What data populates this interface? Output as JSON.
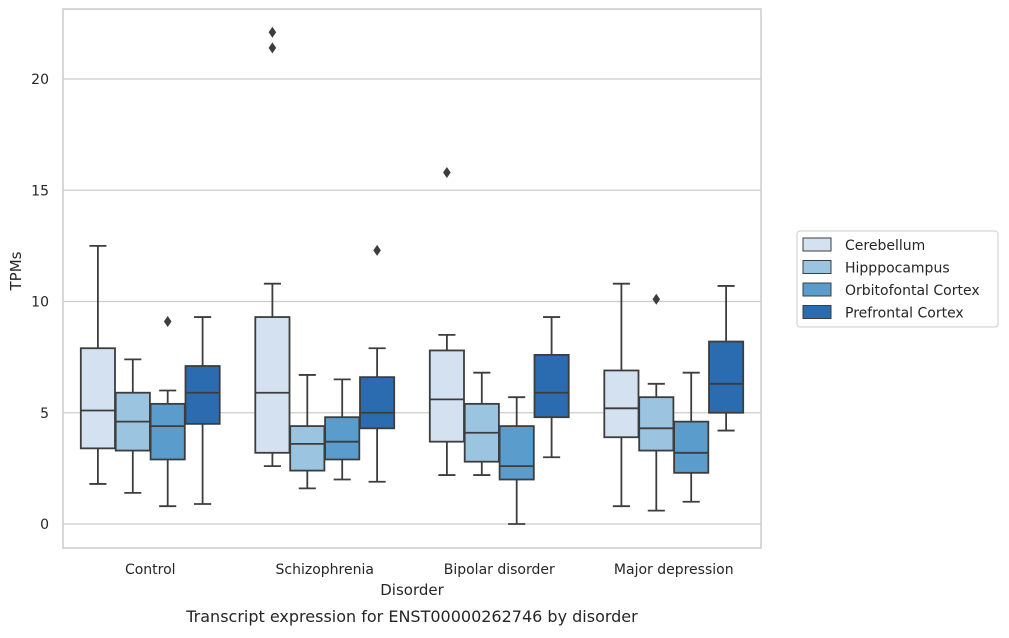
{
  "chart_data": {
    "type": "box",
    "title": "",
    "caption": "Transcript expression for ENST00000262746 by disorder",
    "xlabel": "Disorder",
    "ylabel": "TPMs",
    "ylim": [
      -1,
      23.3
    ],
    "yticks": [
      0,
      5,
      10,
      15,
      20
    ],
    "grid": "horizontal",
    "legend_position": "right",
    "categories": [
      "Control",
      "Schizophrenia",
      "Bipolar disorder",
      "Major depression"
    ],
    "series": [
      {
        "name": "Cerebellum",
        "color": "#d4e1f1",
        "boxes": [
          {
            "whisker_low": 1.8,
            "q1": 3.4,
            "median": 5.1,
            "q3": 7.9,
            "whisker_high": 12.5,
            "outliers": []
          },
          {
            "whisker_low": 2.6,
            "q1": 3.2,
            "median": 5.9,
            "q3": 9.3,
            "whisker_high": 10.8,
            "outliers": [
              21.4,
              22.1
            ]
          },
          {
            "whisker_low": 2.2,
            "q1": 3.7,
            "median": 5.6,
            "q3": 7.8,
            "whisker_high": 8.5,
            "outliers": [
              15.8
            ]
          },
          {
            "whisker_low": 0.8,
            "q1": 3.9,
            "median": 5.2,
            "q3": 6.9,
            "whisker_high": 10.8,
            "outliers": []
          }
        ]
      },
      {
        "name": "Hipppocampus",
        "color": "#9ac4e0",
        "boxes": [
          {
            "whisker_low": 1.4,
            "q1": 3.3,
            "median": 4.6,
            "q3": 5.9,
            "whisker_high": 7.4,
            "outliers": []
          },
          {
            "whisker_low": 1.6,
            "q1": 2.4,
            "median": 3.6,
            "q3": 4.4,
            "whisker_high": 6.7,
            "outliers": []
          },
          {
            "whisker_low": 2.2,
            "q1": 2.8,
            "median": 4.1,
            "q3": 5.4,
            "whisker_high": 6.8,
            "outliers": []
          },
          {
            "whisker_low": 0.6,
            "q1": 3.3,
            "median": 4.3,
            "q3": 5.7,
            "whisker_high": 6.3,
            "outliers": [
              10.1
            ]
          }
        ]
      },
      {
        "name": "Orbitofontal Cortex",
        "color": "#5a9ccc",
        "boxes": [
          {
            "whisker_low": 0.8,
            "q1": 2.9,
            "median": 4.4,
            "q3": 5.4,
            "whisker_high": 6.0,
            "outliers": [
              9.1
            ]
          },
          {
            "whisker_low": 2.0,
            "q1": 2.9,
            "median": 3.7,
            "q3": 4.8,
            "whisker_high": 6.5,
            "outliers": []
          },
          {
            "whisker_low": 0.0,
            "q1": 2.0,
            "median": 2.6,
            "q3": 4.4,
            "whisker_high": 5.7,
            "outliers": []
          },
          {
            "whisker_low": 1.0,
            "q1": 2.3,
            "median": 3.2,
            "q3": 4.6,
            "whisker_high": 6.8,
            "outliers": []
          }
        ]
      },
      {
        "name": "Prefrontal Cortex",
        "color": "#2b6cb0",
        "boxes": [
          {
            "whisker_low": 0.9,
            "q1": 4.5,
            "median": 5.9,
            "q3": 7.1,
            "whisker_high": 9.3,
            "outliers": []
          },
          {
            "whisker_low": 1.9,
            "q1": 4.3,
            "median": 5.0,
            "q3": 6.6,
            "whisker_high": 7.9,
            "outliers": [
              12.3
            ]
          },
          {
            "whisker_low": 3.0,
            "q1": 4.8,
            "median": 5.9,
            "q3": 7.6,
            "whisker_high": 9.3,
            "outliers": []
          },
          {
            "whisker_low": 4.2,
            "q1": 5.0,
            "median": 6.3,
            "q3": 8.2,
            "whisker_high": 10.7,
            "outliers": []
          }
        ]
      }
    ]
  }
}
